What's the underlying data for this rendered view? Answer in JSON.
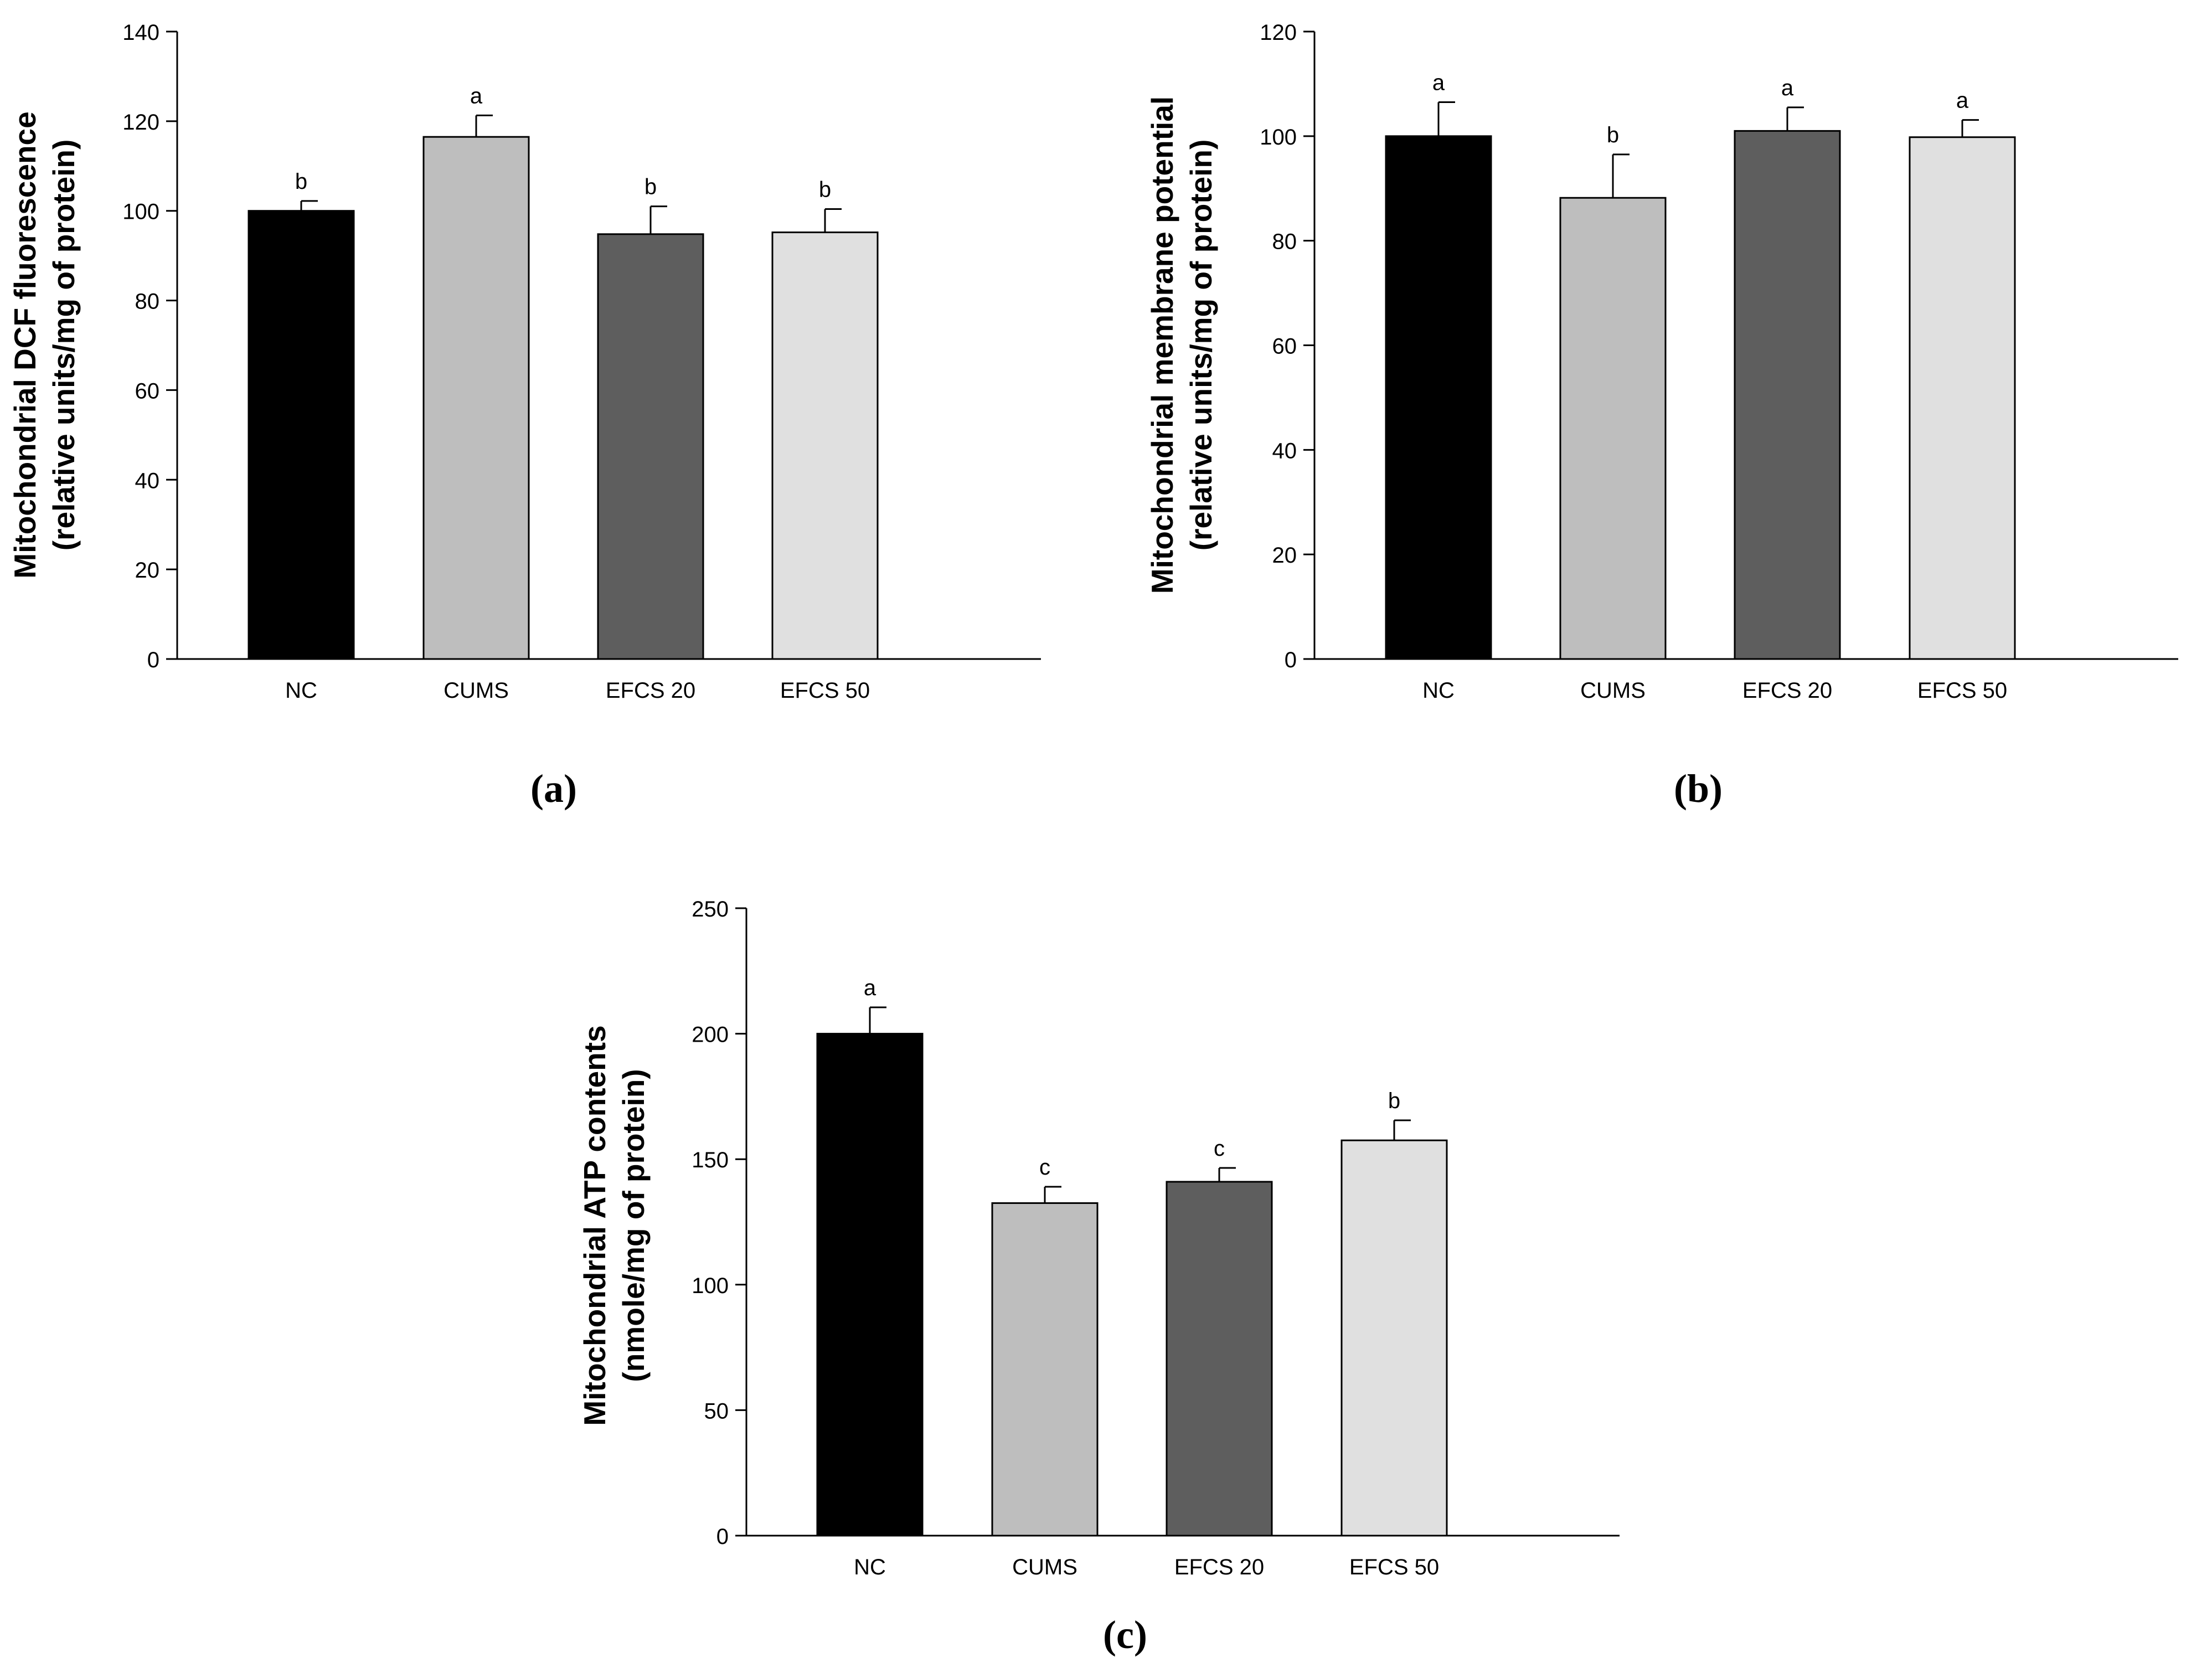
{
  "chart_data": [
    {
      "id": "a",
      "type": "bar",
      "panel_label": "(a)",
      "ylabel_line1": "Mitochondrial DCF fluorescence",
      "ylabel_line2": "(relative units/mg of protein)",
      "categories": [
        "NC",
        "CUMS",
        "EFCS 20",
        "EFCS 50"
      ],
      "values": [
        100,
        116.5,
        94.8,
        95.2
      ],
      "errors": [
        2.2,
        4.8,
        6.2,
        5.2
      ],
      "significance": [
        "b",
        "a",
        "b",
        "b"
      ],
      "ylim": [
        0,
        140
      ],
      "yticks": [
        0,
        20,
        40,
        60,
        80,
        100,
        120,
        140
      ],
      "grid": false
    },
    {
      "id": "b",
      "type": "bar",
      "panel_label": "(b)",
      "ylabel_line1": "Mitochondrial membrane potential",
      "ylabel_line2": "(relative units/mg of protein)",
      "categories": [
        "NC",
        "CUMS",
        "EFCS 20",
        "EFCS 50"
      ],
      "values": [
        100,
        88.2,
        101,
        99.8
      ],
      "errors": [
        6.5,
        8.3,
        4.5,
        3.3
      ],
      "significance": [
        "a",
        "b",
        "a",
        "a"
      ],
      "ylim": [
        0,
        120
      ],
      "yticks": [
        0,
        20,
        40,
        60,
        80,
        100,
        120
      ],
      "grid": false
    },
    {
      "id": "c",
      "type": "bar",
      "panel_label": "(c)",
      "ylabel_line1": "Mitochondrial ATP contents",
      "ylabel_line2": "(nmole/mg of protein)",
      "categories": [
        "NC",
        "CUMS",
        "EFCS 20",
        "EFCS 50"
      ],
      "values": [
        200,
        132.5,
        141,
        157.5
      ],
      "errors": [
        10.5,
        6.5,
        5.5,
        8
      ],
      "significance": [
        "a",
        "c",
        "c",
        "b"
      ],
      "ylim": [
        0,
        250
      ],
      "yticks": [
        0,
        50,
        100,
        150,
        200,
        250
      ],
      "grid": false
    }
  ],
  "colors": {
    "bars": [
      "#000000",
      "#bebebe",
      "#5e5e5e",
      "#e0e0e0"
    ],
    "outline": "#000000",
    "background": "#ffffff"
  }
}
